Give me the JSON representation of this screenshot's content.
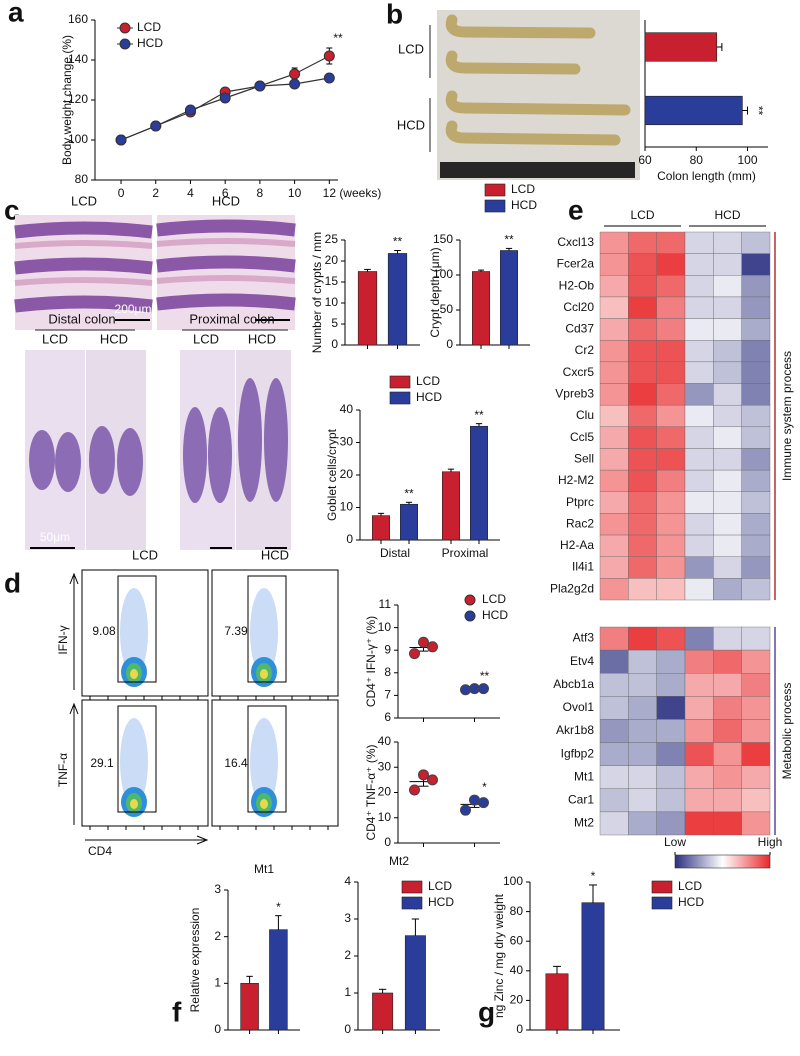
{
  "figure": {
    "panel_labels": [
      "a",
      "b",
      "c",
      "d",
      "e",
      "f",
      "g"
    ],
    "colon_photo": {
      "group_labels": [
        "LCD",
        "HCD"
      ]
    },
    "histology_top": {
      "column_labels": [
        "LCD",
        "HCD"
      ],
      "scale_bar": "200μm"
    },
    "histology_bottom": {
      "region_labels": [
        "Distal colon",
        "Proximal colon"
      ],
      "column_labels": [
        "LCD",
        "HCD",
        "LCD",
        "HCD"
      ],
      "scale_bar": "50μm"
    },
    "flow": {
      "column_labels": [
        "LCD",
        "HCD"
      ],
      "row_labels": [
        "IFN-γ",
        "TNF-α"
      ],
      "x_label": "CD4",
      "gate_values": [
        [
          9.08,
          7.39
        ],
        [
          29.1,
          16.4
        ]
      ]
    }
  },
  "chart_data": [
    {
      "type": "line",
      "ylabel": "Body weight change (%)",
      "xunit": "(weeks)",
      "x": [
        0,
        2,
        4,
        6,
        8,
        10,
        12
      ],
      "xlim": [
        -1.5,
        12.5
      ],
      "xticks": [
        0,
        2,
        4,
        6,
        8,
        10,
        12
      ],
      "ylim": [
        80,
        160
      ],
      "yticks": [
        80,
        100,
        120,
        140,
        160
      ],
      "legend": true,
      "series": [
        {
          "name": "LCD",
          "color": "#c8202f",
          "values": [
            100,
            107,
            114,
            124,
            127,
            133,
            142
          ],
          "errors": [
            1,
            1,
            1.5,
            2,
            1.5,
            3,
            4
          ],
          "annotation": "**"
        },
        {
          "name": "HCD",
          "color": "#2a3d9a",
          "values": [
            100,
            107,
            115,
            121,
            127,
            128,
            131
          ],
          "errors": [
            1,
            1,
            1,
            1.5,
            1.5,
            1.5,
            2
          ]
        }
      ]
    },
    {
      "type": "hbar",
      "xlabel": "Colon length (mm)",
      "xlim": [
        60,
        108
      ],
      "xticks": [
        60,
        80,
        100
      ],
      "values": [
        88,
        98
      ],
      "errors": [
        2,
        2
      ],
      "colors": [
        "#c8202f",
        "#2a3d9a"
      ],
      "annotation": "**"
    },
    {
      "type": "bar",
      "ylabel": "Number of crypts / mm",
      "ylim": [
        0,
        25
      ],
      "yticks": [
        0,
        5,
        10,
        15,
        20,
        25
      ],
      "series": [
        {
          "color": "#c8202f",
          "values": [
            17.5
          ],
          "errors": [
            0.5
          ]
        },
        {
          "color": "#2a3d9a",
          "values": [
            21.8
          ],
          "errors": [
            0.7
          ],
          "annotations": [
            "**"
          ]
        }
      ]
    },
    {
      "type": "bar",
      "ylabel": "Crypt depth (μm)",
      "ylim": [
        0,
        150
      ],
      "yticks": [
        0,
        50,
        100,
        150
      ],
      "legend": true,
      "series": [
        {
          "name": "LCD",
          "color": "#c8202f",
          "values": [
            105
          ],
          "errors": [
            2
          ]
        },
        {
          "name": "HCD",
          "color": "#2a3d9a",
          "values": [
            135
          ],
          "errors": [
            3
          ],
          "annotations": [
            "**"
          ]
        }
      ]
    },
    {
      "type": "bar",
      "ylabel": "Goblet cells/crypt",
      "categories": [
        "Distal",
        "Proximal"
      ],
      "ylim": [
        0,
        40
      ],
      "yticks": [
        0,
        10,
        20,
        30,
        40
      ],
      "legend": true,
      "series": [
        {
          "name": "LCD",
          "color": "#c8202f",
          "values": [
            7.5,
            21
          ],
          "errors": [
            0.7,
            0.8
          ]
        },
        {
          "name": "HCD",
          "color": "#2a3d9a",
          "values": [
            11,
            35
          ],
          "errors": [
            0.6,
            0.8
          ],
          "annotations": [
            "**",
            "**"
          ]
        }
      ]
    },
    {
      "type": "strip",
      "ylabel": "CD4⁺ IFN-γ⁺ (%)",
      "ylim": [
        6,
        11
      ],
      "yticks": [
        6,
        7,
        8,
        9,
        10,
        11
      ],
      "legend": true,
      "series": [
        {
          "name": "LCD",
          "color": "#c8202f",
          "values": [
            9.35,
            8.85,
            9.15
          ],
          "mean": 9.12,
          "error": 0.16
        },
        {
          "name": "HCD",
          "color": "#2a3d9a",
          "values": [
            7.3,
            7.25,
            7.3
          ],
          "mean": 7.28,
          "error": 0.03,
          "annotation": "**"
        }
      ]
    },
    {
      "type": "strip",
      "ylabel": "CD4⁺ TNF-α⁺ (%)",
      "ylim": [
        0,
        40
      ],
      "yticks": [
        0,
        10,
        20,
        30,
        40
      ],
      "series": [
        {
          "color": "#c8202f",
          "values": [
            27,
            21,
            25
          ],
          "mean": 24.3,
          "error": 1.8
        },
        {
          "color": "#2a3d9a",
          "values": [
            17,
            13,
            16
          ],
          "mean": 15.3,
          "error": 1.2,
          "annotation": "*"
        }
      ]
    },
    {
      "type": "heatmap",
      "columns": [
        "LCD",
        "HCD"
      ],
      "zlim": [
        -1,
        1
      ],
      "colors": [
        "#2b2f7f",
        "#ffffff",
        "#e8282b"
      ],
      "colorbar_ticks": [
        {
          "value": -1,
          "label": "Low"
        },
        {
          "value": 1,
          "label": "High"
        }
      ],
      "groups": [
        {
          "name": "Immune system process",
          "color": "#b0342e",
          "rows": [
            "Cxcl13",
            "Fcer2a",
            "H2-Ob",
            "Ccl20",
            "Cd37",
            "Cr2",
            "Cxcr5",
            "Vpreb3",
            "Clu",
            "Ccl5",
            "Sell",
            "H2-M2",
            "Ptprc",
            "Rac2",
            "H2-Aa",
            "Il4i1",
            "Pla2g2d"
          ],
          "values": [
            [
              0.5,
              0.7,
              0.7,
              -0.2,
              -0.2,
              -0.3
            ],
            [
              0.5,
              0.8,
              0.9,
              -0.2,
              -0.2,
              -0.9
            ],
            [
              0.4,
              0.8,
              0.7,
              -0.2,
              -0.1,
              -0.5
            ],
            [
              0.3,
              0.9,
              0.6,
              -0.2,
              -0.2,
              -0.5
            ],
            [
              0.4,
              0.7,
              0.6,
              -0.1,
              -0.1,
              -0.4
            ],
            [
              0.5,
              0.8,
              0.8,
              -0.2,
              -0.3,
              -0.6
            ],
            [
              0.5,
              0.8,
              0.8,
              -0.2,
              -0.3,
              -0.6
            ],
            [
              0.5,
              0.9,
              0.7,
              -0.5,
              -0.2,
              -0.6
            ],
            [
              0.3,
              0.7,
              0.5,
              -0.1,
              -0.2,
              -0.3
            ],
            [
              0.4,
              0.8,
              0.7,
              -0.2,
              -0.1,
              -0.3
            ],
            [
              0.4,
              0.8,
              0.8,
              -0.2,
              -0.2,
              -0.5
            ],
            [
              0.5,
              0.8,
              0.6,
              -0.2,
              -0.1,
              -0.4
            ],
            [
              0.4,
              0.7,
              0.5,
              -0.1,
              -0.1,
              -0.3
            ],
            [
              0.5,
              0.7,
              0.5,
              -0.2,
              -0.1,
              -0.4
            ],
            [
              0.4,
              0.7,
              0.5,
              -0.2,
              -0.1,
              -0.4
            ],
            [
              0.4,
              0.7,
              0.5,
              -0.5,
              -0.2,
              -0.5
            ],
            [
              0.5,
              0.3,
              0.3,
              -0.1,
              -0.4,
              -0.3
            ]
          ]
        },
        {
          "name": "Metabolic process",
          "color": "#5a4aa0",
          "rows": [
            "Atf3",
            "Etv4",
            "Abcb1a",
            "Ovol1",
            "Akr1b8",
            "Igfbp2",
            "Mt1",
            "Car1",
            "Mt2"
          ],
          "values": [
            [
              0.6,
              0.9,
              0.8,
              -0.6,
              -0.2,
              -0.2
            ],
            [
              -0.7,
              -0.3,
              -0.4,
              0.6,
              0.7,
              0.5
            ],
            [
              -0.3,
              -0.3,
              -0.4,
              0.4,
              0.4,
              0.6
            ],
            [
              -0.3,
              -0.4,
              -0.9,
              0.4,
              0.6,
              0.5
            ],
            [
              -0.5,
              -0.4,
              -0.4,
              0.5,
              0.7,
              0.5
            ],
            [
              -0.4,
              -0.4,
              -0.6,
              0.8,
              0.5,
              0.9
            ],
            [
              -0.2,
              -0.2,
              -0.3,
              0.4,
              0.5,
              0.4
            ],
            [
              -0.3,
              -0.2,
              -0.3,
              0.4,
              0.4,
              0.3
            ],
            [
              -0.2,
              -0.4,
              -0.5,
              0.9,
              0.9,
              0.5
            ]
          ]
        }
      ]
    },
    {
      "type": "bar",
      "title": "Mt1",
      "ylabel": "Relative expression",
      "ylim": [
        0,
        3
      ],
      "yticks": [
        0,
        1,
        2,
        3
      ],
      "series": [
        {
          "color": "#c8202f",
          "values": [
            1.0
          ],
          "errors": [
            0.15
          ]
        },
        {
          "color": "#2a3d9a",
          "values": [
            2.15
          ],
          "errors": [
            0.3
          ],
          "annotations": [
            "*"
          ]
        }
      ]
    },
    {
      "type": "bar",
      "title": "Mt2",
      "ylim": [
        0,
        4
      ],
      "yticks": [
        0,
        1,
        2,
        3,
        4
      ],
      "legend": true,
      "series": [
        {
          "name": "LCD",
          "color": "#c8202f",
          "values": [
            1.0
          ],
          "errors": [
            0.1
          ]
        },
        {
          "name": "HCD",
          "color": "#2a3d9a",
          "values": [
            2.55
          ],
          "errors": [
            0.45
          ],
          "annotations": [
            "*"
          ]
        }
      ]
    },
    {
      "type": "bar",
      "ylabel": "ng Zinc / mg dry weight",
      "ylim": [
        0,
        100
      ],
      "yticks": [
        0,
        20,
        40,
        60,
        80,
        100
      ],
      "legend": true,
      "series": [
        {
          "name": "LCD",
          "color": "#c8202f",
          "values": [
            38
          ],
          "errors": [
            5
          ]
        },
        {
          "name": "HCD",
          "color": "#2a3d9a",
          "values": [
            86
          ],
          "errors": [
            12
          ],
          "annotations": [
            "*"
          ]
        }
      ]
    }
  ]
}
